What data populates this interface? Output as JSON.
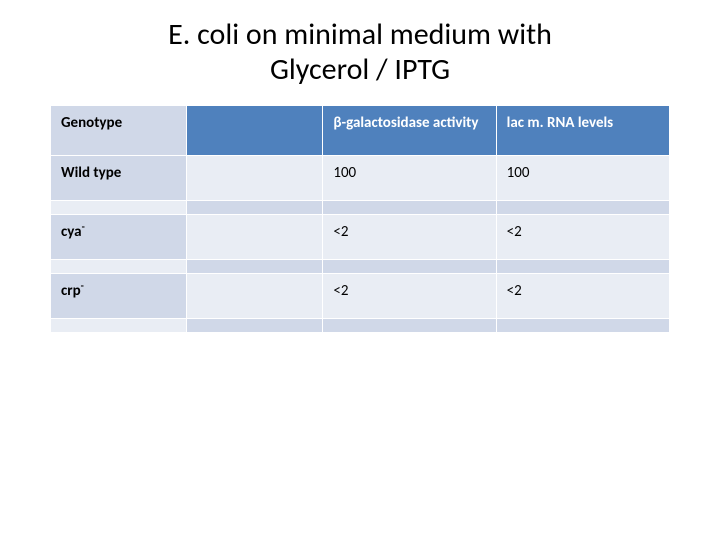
{
  "title_line1": "E. coli on minimal medium with",
  "title_line2": "Glycerol / IPTG",
  "table": {
    "columns": [
      {
        "label": "Genotype",
        "style": "light"
      },
      {
        "label": "",
        "style": "dark"
      },
      {
        "label": "β-galactosidase activity",
        "style": "dark"
      },
      {
        "label": "lac m. RNA levels",
        "style": "dark"
      }
    ],
    "rows": [
      {
        "genotype_base": "Wild type",
        "genotype_sup": "",
        "col1": "",
        "activity": "100",
        "mrna": "100"
      },
      {
        "genotype_base": "cya",
        "genotype_sup": "-",
        "col1": "",
        "activity": "<2",
        "mrna": "<2"
      },
      {
        "genotype_base": "crp",
        "genotype_sup": "-",
        "col1": "",
        "activity": "<2",
        "mrna": "<2"
      }
    ],
    "colors": {
      "header_dark": "#4f81bd",
      "band_dark": "#d0d8e8",
      "band_light": "#e9edf4",
      "border": "#ffffff",
      "text_dark": "#000000",
      "text_light": "#ffffff"
    },
    "font_sizes": {
      "title": 30,
      "header": 15,
      "cell": 15
    }
  }
}
